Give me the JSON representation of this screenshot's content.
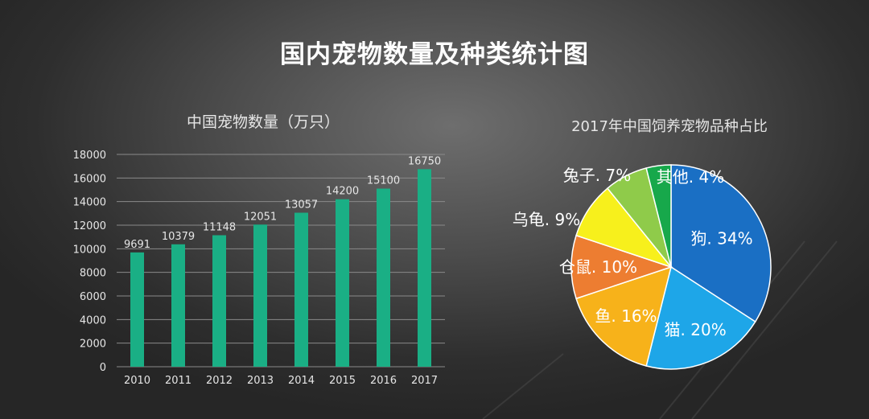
{
  "page": {
    "title": "国内宠物数量及种类统计图"
  },
  "colors": {
    "bar": "#1aaf85",
    "grid": "#8a8a8a",
    "text_light": "#e6e6e6",
    "title": "#ffffff"
  },
  "chart_data": [
    {
      "type": "bar",
      "title": "中国宠物数量（万只）",
      "categories": [
        "2010",
        "2011",
        "2012",
        "2013",
        "2014",
        "2015",
        "2016",
        "2017"
      ],
      "values": [
        9691,
        10379,
        11148,
        12051,
        13057,
        14200,
        15100,
        16750
      ],
      "data_labels": [
        "9691",
        "10379",
        "11148",
        "12051",
        "13057",
        "14200",
        "15100",
        "16750"
      ],
      "ylim": [
        0,
        18000
      ],
      "yticks": [
        0,
        2000,
        4000,
        6000,
        8000,
        10000,
        12000,
        14000,
        16000,
        18000
      ],
      "grid": true,
      "xlabel": "",
      "ylabel": ""
    },
    {
      "type": "pie",
      "title": "2017年中国饲养宠物品种占比",
      "slices": [
        {
          "label": "狗. 34%",
          "value": 34,
          "color": "#1a6fc4"
        },
        {
          "label": "猫. 20%",
          "value": 20,
          "color": "#1ea6e8"
        },
        {
          "label": "鱼. 16%",
          "value": 16,
          "color": "#f7b21a"
        },
        {
          "label": "仓鼠. 10%",
          "value": 10,
          "color": "#ed7d31"
        },
        {
          "label": "乌龟. 9%",
          "value": 9,
          "color": "#f7f01c"
        },
        {
          "label": "兔子. 7%",
          "value": 7,
          "color": "#8fcb4a"
        },
        {
          "label": "其他. 4%",
          "value": 4,
          "color": "#17a84b"
        }
      ]
    }
  ]
}
